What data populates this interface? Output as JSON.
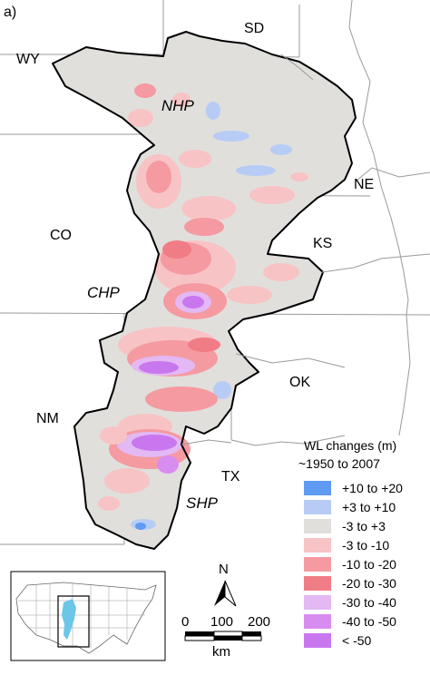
{
  "panel_label": "a)",
  "states": {
    "wy": "WY",
    "sd": "SD",
    "ne": "NE",
    "co": "CO",
    "ks": "KS",
    "ok": "OK",
    "nm": "NM",
    "tx": "TX"
  },
  "subregions": {
    "nhp": "NHP",
    "chp": "CHP",
    "shp": "SHP"
  },
  "legend": {
    "title": "WL changes (m)",
    "period": "~1950 to 2007",
    "items": [
      {
        "label": "+10 to +20",
        "color": "#5f9bf2"
      },
      {
        "label": "+3 to +10",
        "color": "#b7ccf5"
      },
      {
        "label": "-3 to +3",
        "color": "#e1dfdc"
      },
      {
        "label": "-3 to -10",
        "color": "#f8c3c5"
      },
      {
        "label": "-10 to -20",
        "color": "#f59aa1"
      },
      {
        "label": "-20 to -30",
        "color": "#f07d86"
      },
      {
        "label": "-30 to -40",
        "color": "#e3b8f3"
      },
      {
        "label": "-40 to -50",
        "color": "#d98cf0"
      },
      {
        "label": "< -50",
        "color": "#c977ef"
      }
    ]
  },
  "north_arrow": {
    "label": "N",
    "icon": "north-arrow-icon"
  },
  "scale_bar": {
    "ticks": [
      "0",
      "100",
      "200"
    ],
    "unit": "km"
  },
  "inset": {
    "icon": "conus-locator-map-icon",
    "highlight_color": "#6cc6e8"
  },
  "colors": {
    "aquifer_base": "#e1dfdc",
    "state_line": "#9a9a9a",
    "river_line": "#9a9a9a",
    "aquifer_outline": "#000000"
  }
}
